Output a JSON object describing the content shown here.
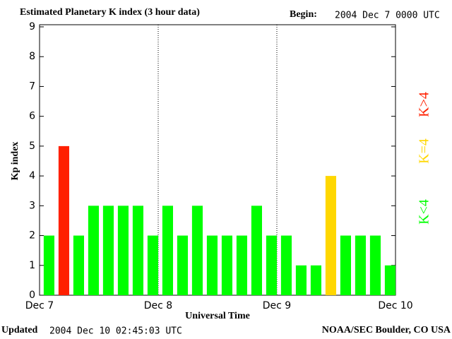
{
  "chart_data": {
    "type": "bar",
    "title": "Estimated Planetary K index (3 hour data)",
    "begin_label": "Begin:",
    "begin": "2004 Dec 7 0000 UTC",
    "y_label": "Kp index",
    "x_label": "Universal Time",
    "updated_label": "Updated",
    "updated": "2004 Dec 10 02:45:03 UTC",
    "source": "NOAA/SEC Boulder, CO USA",
    "x": [
      0,
      3,
      6,
      9,
      12,
      15,
      18,
      21,
      24,
      27,
      30,
      33,
      36,
      39,
      42,
      45,
      48,
      51,
      54,
      57,
      60,
      63,
      66,
      69
    ],
    "values": [
      2,
      5,
      2,
      3,
      3,
      3,
      3,
      2,
      3,
      2,
      3,
      2,
      2,
      2,
      3,
      2,
      2,
      1,
      1,
      4,
      2,
      2,
      2,
      1
    ],
    "colors": [
      "#00ff00",
      "#ff2000",
      "#00ff00",
      "#00ff00",
      "#00ff00",
      "#00ff00",
      "#00ff00",
      "#00ff00",
      "#00ff00",
      "#00ff00",
      "#00ff00",
      "#00ff00",
      "#00ff00",
      "#00ff00",
      "#00ff00",
      "#00ff00",
      "#00ff00",
      "#00ff00",
      "#00ff00",
      "#ffd700",
      "#00ff00",
      "#00ff00",
      "#00ff00",
      "#00ff00"
    ],
    "bar_width": 3,
    "xlim": [
      0,
      72
    ],
    "xticks": [
      {
        "value": 0,
        "label": "Dec 7"
      },
      {
        "value": 24,
        "label": "Dec 8"
      },
      {
        "value": 48,
        "label": "Dec 9"
      },
      {
        "value": 72,
        "label": "Dec 10"
      }
    ],
    "ylim": [
      0,
      9
    ],
    "yticks": [
      0,
      1,
      2,
      3,
      4,
      5,
      6,
      7,
      8,
      9
    ],
    "grid": true,
    "legend": [
      {
        "name": "K<4",
        "color": "#00ff00"
      },
      {
        "name": "K=4",
        "color": "#ffd700"
      },
      {
        "name": "K>4",
        "color": "#ff2000"
      }
    ]
  }
}
